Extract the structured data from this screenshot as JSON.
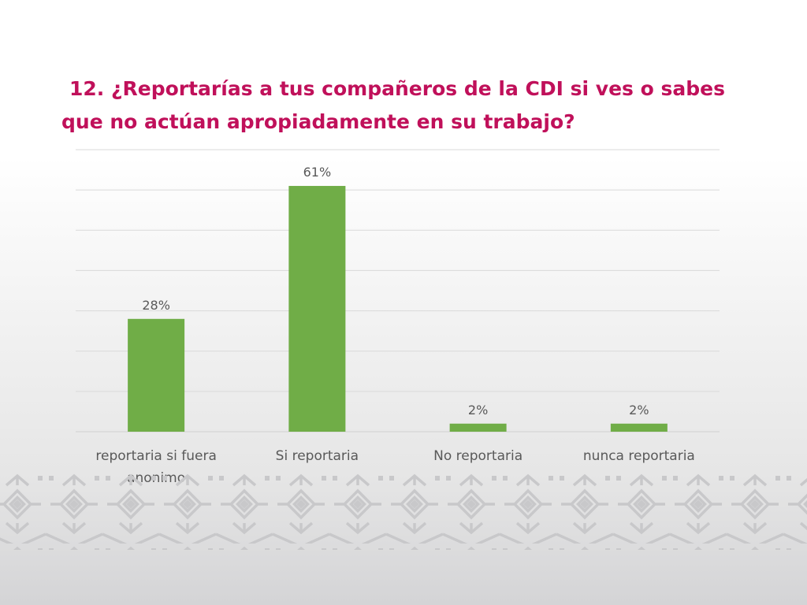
{
  "slide": {
    "title": "12. ¿Reportarías a tus compañeros de la CDI si ves o sabes que no actúan apropiadamente en su trabajo?",
    "title_line1": "12. ¿Reportarías a tus compañeros de la CDI si ves o sabes",
    "title_line2": "que no actúan apropiadamente en su trabajo?"
  },
  "colors": {
    "title": "#c0105a",
    "bar": "#70ad47",
    "label": "#595959",
    "grid": "#d9d9d9",
    "pattern": "#c8c8ca"
  },
  "chart_data": {
    "type": "bar",
    "title": "",
    "xlabel": "",
    "ylabel": "",
    "categories": [
      "reportaria si fuera anonimo",
      "Si reportaria",
      "No reportaria",
      "nunca reportaria"
    ],
    "category_lines": [
      [
        "reportaria si fuera",
        "anonimo"
      ],
      [
        "Si reportaria"
      ],
      [
        "No reportaria"
      ],
      [
        "nunca reportaria"
      ]
    ],
    "values": [
      28,
      61,
      2,
      2
    ],
    "data_labels": [
      "28%",
      "61%",
      "2%",
      "2%"
    ],
    "ylim": [
      0,
      70
    ],
    "grid": true,
    "legend": "none"
  }
}
